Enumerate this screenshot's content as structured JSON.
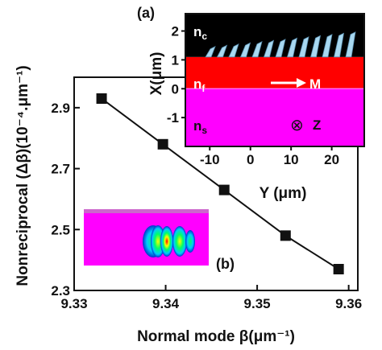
{
  "chart_data": [
    {
      "type": "line",
      "panel_label": "(b)",
      "xlabel": "Normal mode β(μm⁻¹)",
      "ylabel": "Nonreciprocal (Δβ)(10⁻⁴.μm⁻¹)",
      "xlim": [
        9.33,
        9.361
      ],
      "ylim": [
        2.3,
        3.0
      ],
      "x_ticks": [
        9.33,
        9.34,
        9.35,
        9.36
      ],
      "y_ticks": [
        2.3,
        2.5,
        2.7,
        2.9
      ],
      "x_tick_labels": [
        "9.33",
        "9.34",
        "9.35",
        "9.36"
      ],
      "y_tick_labels": [
        "2.3",
        "2.5",
        "2.7",
        "2.9"
      ],
      "series": [
        {
          "marker": "square",
          "x": [
            9.333,
            9.3397,
            9.3464,
            9.3531,
            9.3589
          ],
          "y": [
            2.93,
            2.78,
            2.63,
            2.48,
            2.37
          ]
        }
      ],
      "inset_mode_profile": {
        "colors": [
          "#ff00ff",
          "#00ccff",
          "#00ff66",
          "#ffff00",
          "#ff0000",
          "#0000cc"
        ]
      }
    },
    {
      "type": "diagram",
      "panel_label": "(a)",
      "xlabel": "Y (μm)",
      "ylabel": "X(μm)",
      "xlim": [
        -16,
        28
      ],
      "ylim": [
        -2.0,
        2.6
      ],
      "x_ticks": [
        -10,
        0,
        10,
        20
      ],
      "y_ticks": [
        -1,
        0,
        1,
        2
      ],
      "x_tick_labels": [
        "-10",
        "0",
        "10",
        "20"
      ],
      "y_tick_labels": [
        "-1",
        "0",
        "1",
        "2"
      ],
      "layers": [
        {
          "name": "n_c",
          "label_main": "n",
          "label_sub": "c",
          "x_from": 1.1,
          "x_to": 2.6,
          "color": "#000000"
        },
        {
          "name": "n_f",
          "label_main": "n",
          "label_sub": "f",
          "x_from": 0.0,
          "x_to": 1.1,
          "color": "#ff0000"
        },
        {
          "name": "n_s",
          "label_main": "n",
          "label_sub": "s",
          "x_from": -2.0,
          "x_to": 0.0,
          "color": "#ff00ff"
        }
      ],
      "magnetization_label": "M",
      "propagation_label": "Z",
      "propagation_symbol": "⊗",
      "grating_color": "#a8d8f0"
    }
  ]
}
